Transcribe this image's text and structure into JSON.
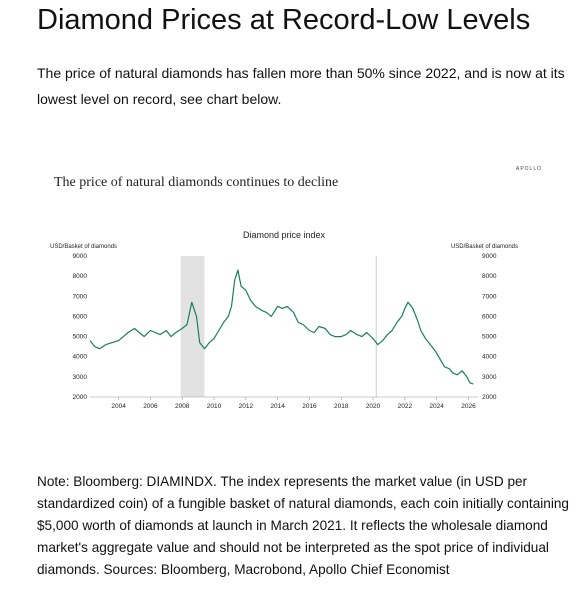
{
  "page": {
    "title": "Diamond Prices at Record-Low Levels",
    "intro": "The price of natural diamonds has fallen more than 50% since 2022, and is now at its lowest level on record, see chart below.",
    "note": "Note: Bloomberg: DIAMINDX. The index represents the market value (in USD per standardized coin) of a fungible basket of natural diamonds, each coin initially containing $5,000 worth of diamonds at launch in March 2021. It reflects the wholesale diamond market's aggregate value and should not be interpreted as the spot price of individual diamonds. Sources: Bloomberg, Macrobond, Apollo Chief Economist"
  },
  "chart_header": {
    "headline": "The price of natural diamonds continues to decline",
    "brand": "APOLLO"
  },
  "colors": {
    "line": "#1a7d5e",
    "recession_band": "#e2e2e2",
    "marker_line": "#cccccc",
    "text": "#222222"
  },
  "chart_data": {
    "type": "line",
    "title": "Diamond price index",
    "ylabel_left": "USD/Basket of diamonds",
    "ylabel_right": "USD/Basket of diamonds",
    "xlim": [
      2002.2,
      2026.6
    ],
    "ylim": [
      2000,
      9000
    ],
    "xticks": [
      2004,
      2006,
      2008,
      2010,
      2012,
      2014,
      2016,
      2018,
      2020,
      2022,
      2024,
      2026
    ],
    "yticks": [
      2000,
      3000,
      4000,
      5000,
      6000,
      7000,
      8000,
      9000
    ],
    "shaded_range": [
      2007.9,
      2009.4
    ],
    "vertical_marker": 2020.2,
    "series": [
      {
        "x": [
          2002.2,
          2002.5,
          2002.8,
          2003.2,
          2003.6,
          2004.0,
          2004.3,
          2004.6,
          2005.0,
          2005.3,
          2005.6,
          2006.0,
          2006.3,
          2006.6,
          2007.0,
          2007.3,
          2007.6,
          2008.0,
          2008.3,
          2008.6,
          2008.9,
          2009.1,
          2009.4,
          2009.7,
          2010.0,
          2010.3,
          2010.6,
          2010.9,
          2011.1,
          2011.3,
          2011.5,
          2011.7,
          2012.0,
          2012.3,
          2012.6,
          2013.0,
          2013.3,
          2013.6,
          2014.0,
          2014.3,
          2014.6,
          2015.0,
          2015.3,
          2015.6,
          2016.0,
          2016.3,
          2016.6,
          2017.0,
          2017.3,
          2017.6,
          2018.0,
          2018.3,
          2018.6,
          2019.0,
          2019.3,
          2019.6,
          2020.0,
          2020.3,
          2020.6,
          2020.9,
          2021.2,
          2021.5,
          2021.8,
          2022.0,
          2022.2,
          2022.5,
          2022.8,
          2023.0,
          2023.3,
          2023.6,
          2023.9,
          2024.2,
          2024.5,
          2024.8,
          2025.0,
          2025.3,
          2025.6,
          2025.9,
          2026.1,
          2026.3
        ],
        "values": [
          4800,
          4500,
          4400,
          4600,
          4700,
          4800,
          5000,
          5200,
          5400,
          5200,
          5000,
          5300,
          5200,
          5100,
          5300,
          5000,
          5200,
          5400,
          5600,
          6700,
          6000,
          4700,
          4400,
          4700,
          4900,
          5300,
          5700,
          6000,
          6500,
          7800,
          8300,
          7500,
          7300,
          6800,
          6500,
          6300,
          6200,
          6000,
          6500,
          6400,
          6500,
          6200,
          5700,
          5600,
          5300,
          5200,
          5500,
          5400,
          5100,
          5000,
          5000,
          5100,
          5300,
          5100,
          5000,
          5200,
          4900,
          4600,
          4800,
          5100,
          5300,
          5700,
          6000,
          6400,
          6700,
          6400,
          5800,
          5300,
          4900,
          4600,
          4300,
          3900,
          3500,
          3400,
          3200,
          3100,
          3300,
          3000,
          2700,
          2650
        ]
      }
    ]
  }
}
